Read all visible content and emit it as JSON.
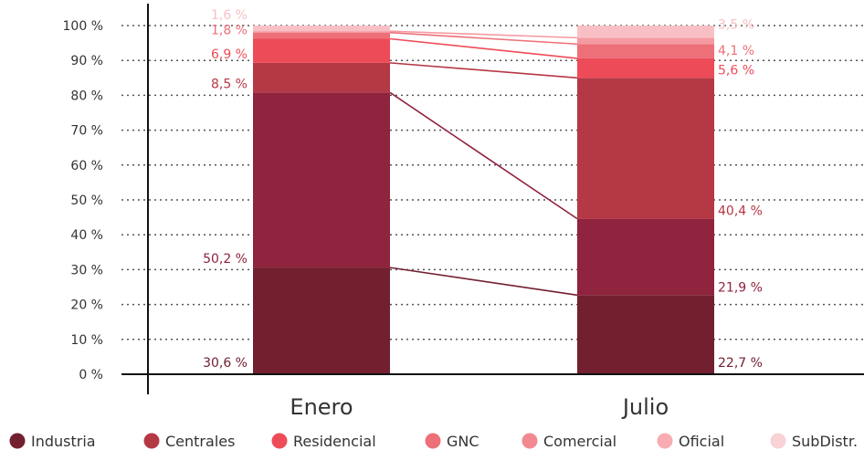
{
  "chart_data": {
    "type": "bar",
    "stacked": true,
    "percent_stacked": true,
    "categories": [
      "Enero",
      "Julio"
    ],
    "series": [
      {
        "name": "Industria",
        "values": [
          30.6,
          22.7
        ],
        "color": "#722030",
        "labels": [
          "30,6 %",
          "22,7 %"
        ]
      },
      {
        "name": "Centrales",
        "values": [
          50.2,
          21.9
        ],
        "color": "#90233d",
        "labels": [
          "50,2 %",
          "21,9 %"
        ]
      },
      {
        "name": "Residencial",
        "values": [
          8.5,
          40.4
        ],
        "color": "#b53845",
        "labels": [
          "8,5 %",
          "40,4 %"
        ]
      },
      {
        "name": "GNC",
        "values": [
          6.9,
          5.6
        ],
        "color": "#ee4b58",
        "labels": [
          "6,9 %",
          "5,6 %"
        ]
      },
      {
        "name": "Comercial",
        "values": [
          1.8,
          4.1
        ],
        "color": "#ed6f78",
        "labels": [
          "1,8 %",
          "4,1 %"
        ]
      },
      {
        "name": "Oficial",
        "values": [
          0.4,
          1.8
        ],
        "color": "#f59aa2",
        "labels": [
          "",
          ""
        ]
      },
      {
        "name": "SubDistr.",
        "values": [
          1.6,
          3.5
        ],
        "color": "#f8c0c5",
        "labels": [
          "1,6 %",
          "3,5 %"
        ]
      }
    ],
    "legend_colors": [
      "#722030",
      "#b53845",
      "#ee4b58",
      "#ed6f78",
      "#f28890",
      "#f8acb2",
      "#f9d2d5"
    ],
    "yticks": [
      "0 %",
      "10 %",
      "20 %",
      "30 %",
      "40 %",
      "50 %",
      "60 %",
      "70 %",
      "80 %",
      "90 %",
      "100 %"
    ],
    "ylim": [
      0,
      100
    ],
    "grid": true,
    "legend": "bottom",
    "connectors": true
  }
}
